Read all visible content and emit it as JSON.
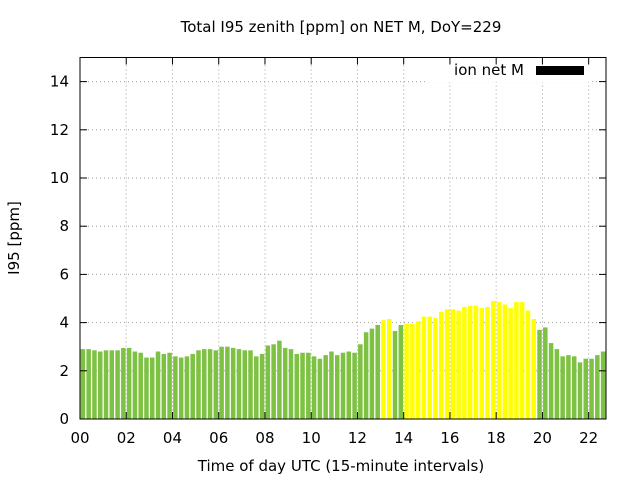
{
  "chart_data": {
    "type": "bar",
    "title": "Total I95 zenith [ppm] on NET M, DoY=229",
    "xlabel": "Time of day UTC (15-minute intervals)",
    "ylabel": "I95 [ppm]",
    "xlim": [
      0,
      22.75
    ],
    "ylim": [
      0,
      15
    ],
    "bar_interval_hours": 0.25,
    "x_tick_values": [
      0,
      2,
      4,
      6,
      8,
      10,
      12,
      14,
      16,
      18,
      20,
      22
    ],
    "x_tick_labels": [
      "00",
      "02",
      "04",
      "06",
      "08",
      "10",
      "12",
      "14",
      "16",
      "18",
      "20",
      "22"
    ],
    "y_tick_values": [
      0,
      2,
      4,
      6,
      8,
      10,
      12,
      14
    ],
    "y_tick_labels": [
      "0",
      "2",
      "4",
      "6",
      "8",
      "10",
      "12",
      "14"
    ],
    "grid": true,
    "legend": {
      "label": "ion net M",
      "position": "top-right",
      "color": "#000000"
    },
    "colors": {
      "normal": "#7dc243",
      "elevated": "#ffff00"
    },
    "series": [
      {
        "x": [
          0,
          0.25,
          0.5,
          0.75,
          1,
          1.25,
          1.5,
          1.75,
          2,
          2.25,
          2.5,
          2.75,
          3,
          3.25,
          3.5,
          3.75,
          4,
          4.25,
          4.5,
          4.75,
          5,
          5.25,
          5.5,
          5.75,
          6,
          6.25,
          6.5,
          6.75,
          7,
          7.25,
          7.5,
          7.75,
          8,
          8.25,
          8.5,
          8.75,
          9,
          9.25,
          9.5,
          9.75,
          10,
          10.25,
          10.5,
          10.75,
          11,
          11.25,
          11.5,
          11.75,
          12,
          12.25,
          12.5,
          12.75,
          13,
          13.25,
          13.5,
          13.75,
          14,
          14.25,
          14.5,
          14.75,
          15,
          15.25,
          15.5,
          15.75,
          16,
          16.25,
          16.5,
          16.75,
          17,
          17.25,
          17.5,
          17.75,
          18,
          18.25,
          18.5,
          18.75,
          19,
          19.25,
          19.5,
          19.75,
          20,
          20.25,
          20.5,
          20.75,
          21,
          21.25,
          21.5,
          21.75,
          22,
          22.25,
          22.5
        ],
        "values": [
          2.9,
          2.9,
          2.85,
          2.8,
          2.85,
          2.85,
          2.85,
          2.95,
          2.95,
          2.8,
          2.75,
          2.55,
          2.55,
          2.8,
          2.7,
          2.75,
          2.6,
          2.55,
          2.6,
          2.7,
          2.85,
          2.9,
          2.9,
          2.85,
          3.0,
          3.0,
          2.95,
          2.9,
          2.85,
          2.85,
          2.6,
          2.7,
          3.05,
          3.1,
          3.25,
          2.95,
          2.9,
          2.7,
          2.75,
          2.75,
          2.6,
          2.5,
          2.65,
          2.8,
          2.65,
          2.75,
          2.8,
          2.75,
          3.1,
          3.6,
          3.75,
          3.9,
          4.1,
          4.15,
          3.65,
          3.9,
          3.95,
          3.95,
          4.05,
          4.25,
          4.25,
          4.2,
          4.45,
          4.55,
          4.55,
          4.5,
          4.65,
          4.7,
          4.7,
          4.6,
          4.65,
          4.9,
          4.85,
          4.75,
          4.6,
          4.85,
          4.85,
          4.5,
          4.15,
          3.7,
          3.8,
          3.15,
          2.9,
          2.6,
          2.65,
          2.6,
          2.35,
          2.5,
          2.5,
          2.65,
          2.8
        ],
        "levels": [
          "normal",
          "normal",
          "normal",
          "normal",
          "normal",
          "normal",
          "normal",
          "normal",
          "normal",
          "normal",
          "normal",
          "normal",
          "normal",
          "normal",
          "normal",
          "normal",
          "normal",
          "normal",
          "normal",
          "normal",
          "normal",
          "normal",
          "normal",
          "normal",
          "normal",
          "normal",
          "normal",
          "normal",
          "normal",
          "normal",
          "normal",
          "normal",
          "normal",
          "normal",
          "normal",
          "normal",
          "normal",
          "normal",
          "normal",
          "normal",
          "normal",
          "normal",
          "normal",
          "normal",
          "normal",
          "normal",
          "normal",
          "normal",
          "normal",
          "normal",
          "normal",
          "normal",
          "elevated",
          "elevated",
          "normal",
          "normal",
          "elevated",
          "elevated",
          "elevated",
          "elevated",
          "elevated",
          "elevated",
          "elevated",
          "elevated",
          "elevated",
          "elevated",
          "elevated",
          "elevated",
          "elevated",
          "elevated",
          "elevated",
          "elevated",
          "elevated",
          "elevated",
          "elevated",
          "elevated",
          "elevated",
          "elevated",
          "elevated",
          "normal",
          "normal",
          "normal",
          "normal",
          "normal",
          "normal",
          "normal",
          "normal",
          "normal",
          "normal",
          "normal",
          "normal"
        ]
      }
    ]
  }
}
